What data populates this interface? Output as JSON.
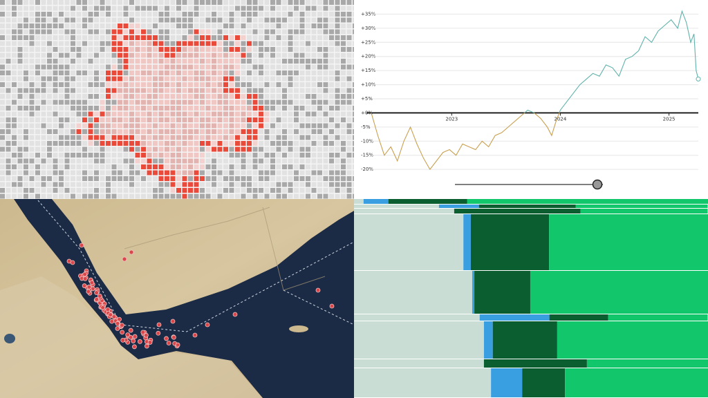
{
  "chart_data": [
    {
      "type": "line",
      "x": [
        2022.26,
        2022.32,
        2022.38,
        2022.44,
        2022.5,
        2022.56,
        2022.62,
        2022.68,
        2022.74,
        2022.8,
        2022.86,
        2022.92,
        2022.98,
        2023.04,
        2023.1,
        2023.16,
        2023.22,
        2023.28,
        2023.34,
        2023.4,
        2023.46,
        2023.52,
        2023.58,
        2023.64,
        2023.7,
        2023.76,
        2023.82,
        2023.88,
        2023.92,
        2023.96,
        2024.0,
        2024.06,
        2024.12,
        2024.18,
        2024.24,
        2024.3,
        2024.36,
        2024.42,
        2024.48,
        2024.54,
        2024.6,
        2024.66,
        2024.72,
        2024.78,
        2024.84,
        2024.9,
        2024.96,
        2025.02,
        2025.08,
        2025.12,
        2025.16,
        2025.2,
        2025.23,
        2025.25,
        2025.27
      ],
      "series": [
        {
          "colors": {
            "negative": "#c9a04f",
            "positive": "#5fb2ab"
          },
          "values": [
            0,
            -8,
            -15,
            -12,
            -17,
            -10,
            -5,
            -11,
            -16,
            -20,
            -17,
            -14,
            -13,
            -15,
            -11,
            -12,
            -13,
            -10,
            -12,
            -8,
            -7,
            -5,
            -3,
            -1,
            1,
            0,
            -2,
            -5,
            -8,
            -3,
            1,
            4,
            7,
            10,
            12,
            14,
            13,
            17,
            16,
            13,
            19,
            20,
            22,
            27,
            25,
            29,
            31,
            33,
            30,
            36,
            32,
            25,
            28,
            15,
            12
          ]
        }
      ],
      "xlim": [
        2022.26,
        2025.27
      ],
      "xticks": [
        2023,
        2024,
        2025
      ],
      "ylim": [
        -30,
        40
      ],
      "yticks": [
        {
          "value": 35,
          "label": "+35%"
        },
        {
          "value": 30,
          "label": "+30%"
        },
        {
          "value": 25,
          "label": "+25%"
        },
        {
          "value": 20,
          "label": "+20%"
        },
        {
          "value": 15,
          "label": "+15%"
        },
        {
          "value": 10,
          "label": "+10%"
        },
        {
          "value": 5,
          "label": "+5%"
        },
        {
          "value": 0,
          "label": "+0%"
        },
        {
          "value": -5,
          "label": "-5%"
        },
        {
          "value": -10,
          "label": "-10%"
        },
        {
          "value": -15,
          "label": "-15%"
        },
        {
          "value": -20,
          "label": "-20%"
        }
      ],
      "grid": true
    },
    {
      "type": "stacked-hbar",
      "categories": [
        null,
        null,
        null,
        null,
        null,
        null,
        null,
        null,
        null
      ],
      "xlim": [
        0,
        100
      ],
      "series": [
        {
          "color": "#c9ddd4",
          "values": [
            2.7,
            24.0,
            28.3,
            30.9,
            33.4,
            35.5,
            36.7,
            36.7,
            38.7
          ]
        },
        {
          "color": "#3a9fe0",
          "values": [
            7.0,
            11.3,
            0,
            2.1,
            0.6,
            19.7,
            2.5,
            0,
            8.8
          ]
        },
        {
          "color": "#0b5e30",
          "values": [
            22.3,
            27.3,
            35.7,
            22.1,
            15.8,
            16.6,
            18.2,
            29.1,
            12.1
          ]
        },
        {
          "color": "#12c76b",
          "values": [
            68.0,
            37.3,
            35.9,
            44.9,
            50.2,
            28.1,
            42.6,
            34.2,
            40.4
          ]
        }
      ]
    }
  ]
}
